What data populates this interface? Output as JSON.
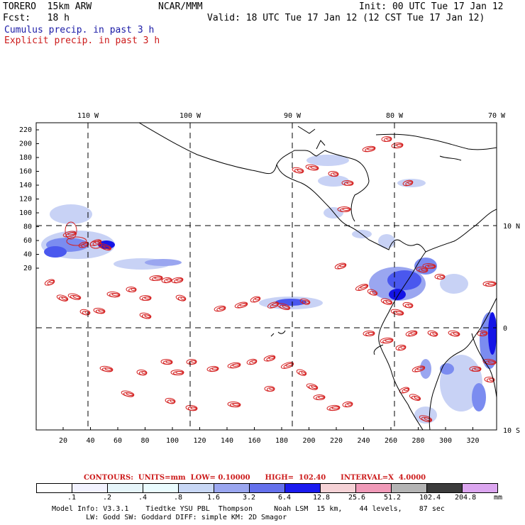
{
  "header": {
    "model": "TORERO  15km ARW",
    "org": "NCAR/MMM",
    "init": "Init: 00 UTC Tue 17 Jan 12",
    "fcst": "Fcst:   18 h",
    "valid": "Valid: 18 UTC Tue 17 Jan 12 (12 CST Tue 17 Jan 12)",
    "cumulus": "Cumulus precip. in past 3 h",
    "explicit": "Explicit precip. in past 3 h"
  },
  "map": {
    "lon_labels": [
      "110 W",
      "100 W",
      "90 W",
      "80 W",
      "70 W"
    ],
    "lat_labels": [
      "10 N",
      "0",
      "10 S"
    ],
    "y_ticks": [
      "220",
      "200",
      "180",
      "160",
      "140",
      "120",
      "100",
      "80",
      "60",
      "40",
      "20"
    ],
    "x_ticks": [
      "20",
      "40",
      "60",
      "80",
      "100",
      "120",
      "140",
      "160",
      "180",
      "200",
      "220",
      "240",
      "260",
      "280",
      "300",
      "320"
    ],
    "colors": {
      "cumulus_light": "#c8d2f5",
      "cumulus_mid": "#7b8cf0",
      "cumulus_dark": "#1414e6",
      "contour": "#d42020",
      "coast": "#000000"
    }
  },
  "contours": {
    "text": "CONTOURS:  UNITS=mm  LOW= 0.10000      HIGH=  102.40      INTERVAL=X  4.0000"
  },
  "colorbar": {
    "labels": [
      ".1",
      ".2",
      ".4",
      ".8",
      "1.6",
      "3.2",
      "6.4",
      "12.8",
      "25.6",
      "51.2",
      "102.4",
      "204.8"
    ],
    "unit": "mm",
    "colors": [
      "#ffffff",
      "#f2f2ff",
      "#e6f5fa",
      "#eafcff",
      "#c8d7f5",
      "#9aa6f0",
      "#6470ec",
      "#1a1aef",
      "#f5d2d6",
      "#f09ab8",
      "#b4b4b4",
      "#3c3c3c",
      "#dca6f0"
    ]
  },
  "footer": {
    "line1": "Model Info: V3.3.1    Tiedtke YSU PBL  Thompson     Noah LSM  15 km,    44 levels,    87 sec",
    "line2": "        LW: Godd SW: Goddard DIFF: simple KM: 2D Smagor"
  }
}
